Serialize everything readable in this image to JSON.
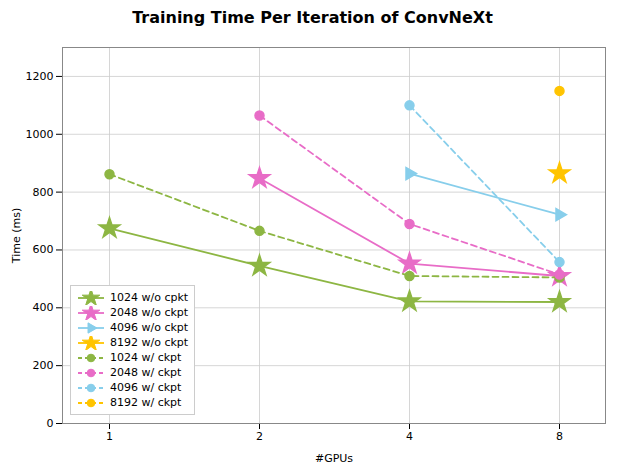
{
  "chart_data": {
    "type": "line",
    "title": "Training Time Per Iteration of ConvNeXt",
    "xlabel": "#GPUs",
    "ylabel": "Time (ms)",
    "categories": [
      "1",
      "2",
      "4",
      "8"
    ],
    "series": [
      {
        "name": "1024 w/o cpkt",
        "color": "#8db643",
        "values": [
          675,
          545,
          422,
          420
        ],
        "marker": "star",
        "line_style": "solid"
      },
      {
        "name": "2048 w/o ckpt",
        "color": "#e86cc7",
        "values": [
          null,
          848,
          553,
          510
        ],
        "marker": "star",
        "line_style": "solid"
      },
      {
        "name": "4096 w/o ckpt",
        "color": "#87ceeb",
        "values": [
          null,
          null,
          864,
          722
        ],
        "marker": "triangle-right",
        "line_style": "solid"
      },
      {
        "name": "8192 w/o ckpt",
        "color": "#ffc400",
        "values": [
          null,
          null,
          null,
          865
        ],
        "marker": "star",
        "line_style": "solid"
      },
      {
        "name": "1024 w/ ckpt",
        "color": "#8db643",
        "values": [
          862,
          666,
          510,
          505
        ],
        "marker": "circle",
        "line_style": "dashed"
      },
      {
        "name": "2048 w/ ckpt",
        "color": "#e86cc7",
        "values": [
          null,
          1065,
          690,
          515
        ],
        "marker": "circle",
        "line_style": "dashed"
      },
      {
        "name": "4096 w/ ckpt",
        "color": "#87ceeb",
        "values": [
          null,
          null,
          1100,
          558
        ],
        "marker": "circle",
        "line_style": "dashed"
      },
      {
        "name": "8192 w/ ckpt",
        "color": "#ffc400",
        "values": [
          null,
          null,
          null,
          1150
        ],
        "marker": "circle",
        "line_style": "dashed"
      }
    ],
    "ylim": [
      0,
      1300
    ],
    "yticks": [
      0,
      200,
      400,
      600,
      800,
      1000,
      1200
    ],
    "grid": true,
    "legend": "lower left"
  }
}
